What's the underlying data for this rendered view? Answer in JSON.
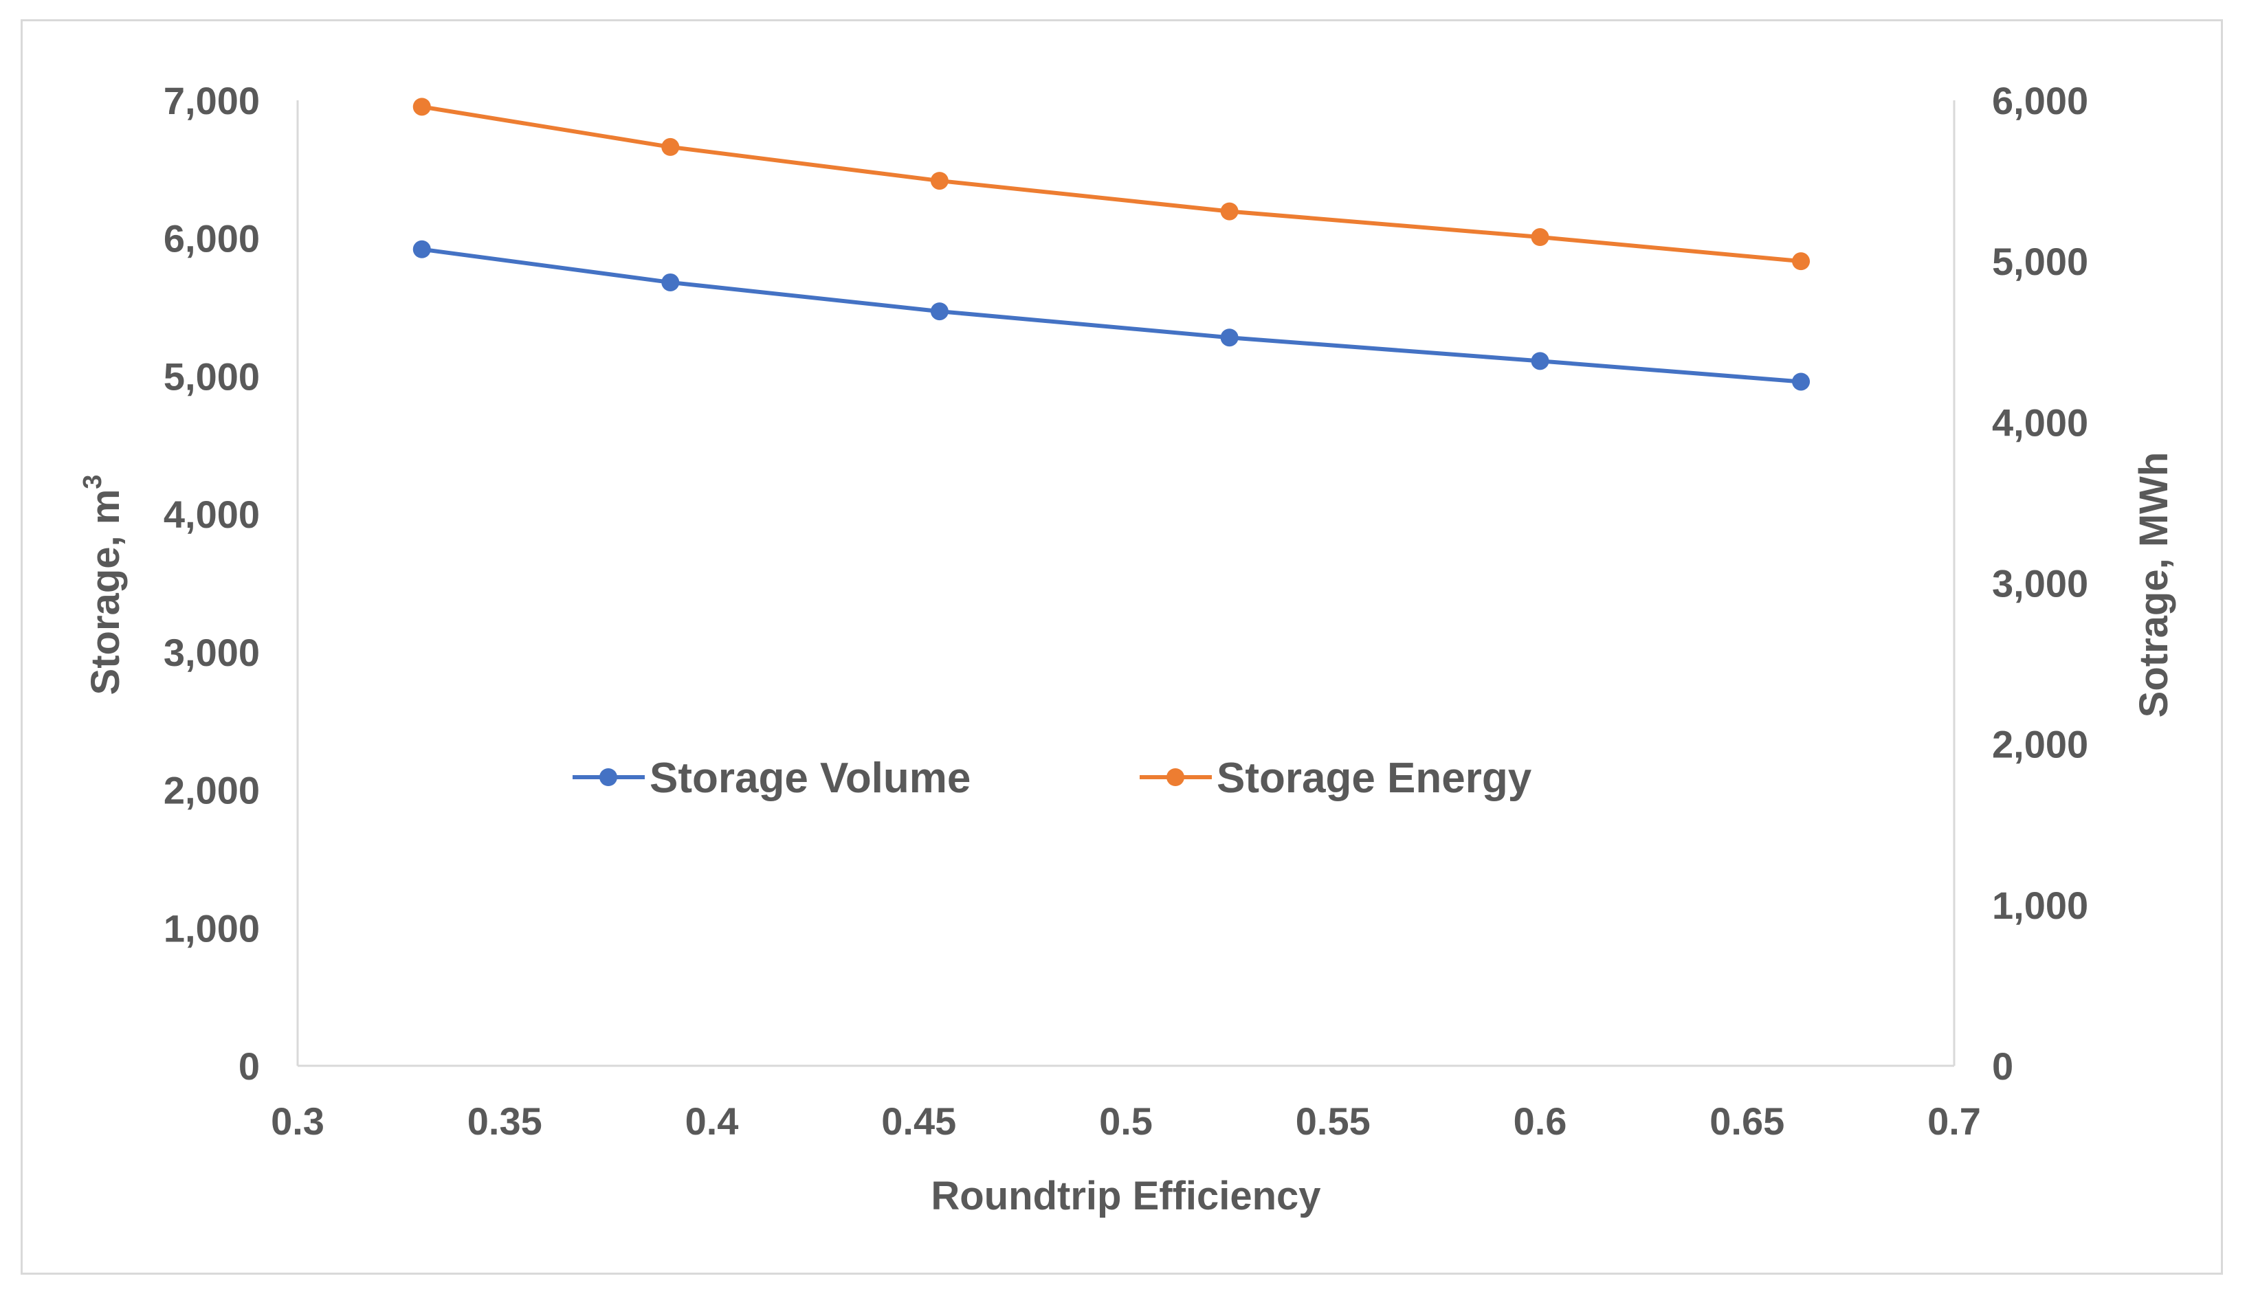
{
  "chart_data": {
    "type": "line",
    "title": "",
    "xlabel": "Roundtrip Efficiency",
    "ylabel_left": "Storage, m",
    "ylabel_left_superscript": "3",
    "ylabel_right": "Sotrage, MWh",
    "xlim": [
      0.3,
      0.7
    ],
    "ylim_left": [
      0,
      7000
    ],
    "ylim_right": [
      0,
      6000
    ],
    "x_ticks": [
      "0.3",
      "0.35",
      "0.4",
      "0.45",
      "0.5",
      "0.55",
      "0.6",
      "0.65",
      "0.7"
    ],
    "x_tick_values": [
      0.3,
      0.35,
      0.4,
      0.45,
      0.5,
      0.55,
      0.6,
      0.65,
      0.7
    ],
    "y_left_ticks": [
      "0",
      "1,000",
      "2,000",
      "3,000",
      "4,000",
      "5,000",
      "6,000",
      "7,000"
    ],
    "y_left_tick_values": [
      0,
      1000,
      2000,
      3000,
      4000,
      5000,
      6000,
      7000
    ],
    "y_right_ticks": [
      "0",
      "1,000",
      "2,000",
      "3,000",
      "4,000",
      "5,000",
      "6,000"
    ],
    "y_right_tick_values": [
      0,
      1000,
      2000,
      3000,
      4000,
      5000,
      6000
    ],
    "legend_position": "center",
    "series": [
      {
        "name": "Storage Volume",
        "axis": "left",
        "color": "#4472C4",
        "x": [
          0.33,
          0.39,
          0.455,
          0.525,
          0.6,
          0.663
        ],
        "y": [
          5920,
          5680,
          5470,
          5280,
          5110,
          4960
        ]
      },
      {
        "name": "Storage Energy",
        "axis": "right",
        "color": "#ED7D31",
        "x": [
          0.33,
          0.39,
          0.455,
          0.525,
          0.6,
          0.663
        ],
        "y": [
          5960,
          5710,
          5500,
          5310,
          5150,
          5000
        ]
      }
    ]
  }
}
